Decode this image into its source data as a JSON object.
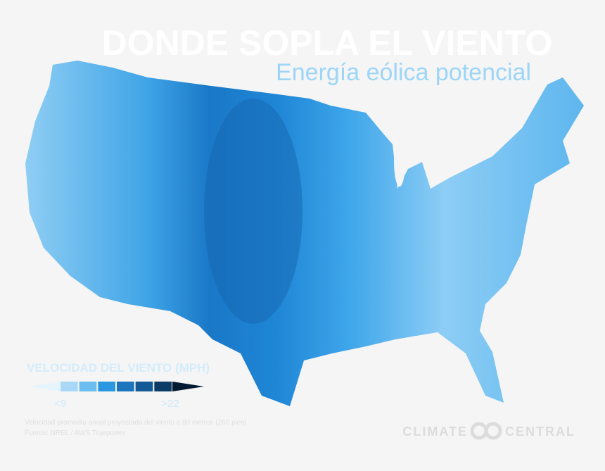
{
  "header": {
    "title": "DONDE SOPLA EL VIENTO",
    "subtitle": "Energía eólica potencial"
  },
  "legend": {
    "title": "VELOCIDAD DEL VIENTO (MPH)",
    "low_label": "<9",
    "high_label": ">22",
    "colors": [
      "#e6f4fd",
      "#a9d8f7",
      "#6cbdf0",
      "#2b97e0",
      "#1c74bc",
      "#135a96",
      "#0c3c66",
      "#041a30"
    ]
  },
  "source": {
    "line1": "Velocidad promedio anual proyectada del viento a 80 metros (260 pies)",
    "line2": "Fuente: NREL / AWS Truepower"
  },
  "logo": {
    "left": "CLIMATE",
    "right": "CENTRAL"
  }
}
